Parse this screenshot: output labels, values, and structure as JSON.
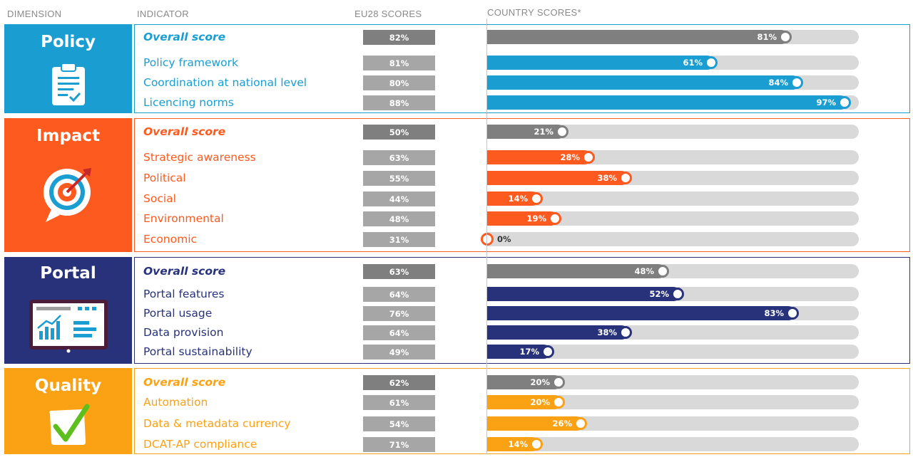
{
  "headers": {
    "dimension": "DIMENSION",
    "indicator": "INDICATOR",
    "eu28": "EU28 SCORES",
    "country": "COUNTRY SCORES*"
  },
  "colors": {
    "policy": "#1a9ed1",
    "impact": "#fc5a1f",
    "portal": "#27327a",
    "quality": "#fba114",
    "overall_bar": "#7f7f7f",
    "eu_box": "#a6a6a6",
    "eu_box_overall": "#7f7f7f",
    "track": "#d9d9d9"
  },
  "chart_data": {
    "type": "bar",
    "orientation": "horizontal",
    "value_unit": "%",
    "xlim": [
      0,
      100
    ],
    "dimensions": [
      {
        "name": "Policy",
        "icon": "clipboard-icon",
        "indicators": [
          {
            "label": "Overall score",
            "eu28": "82%",
            "country": 81,
            "country_label": "81%",
            "overall": true
          },
          {
            "label": "Policy framework",
            "eu28": "81%",
            "country": 61,
            "country_label": "61%"
          },
          {
            "label": "Coordination at national level",
            "eu28": "80%",
            "country": 84,
            "country_label": "84%"
          },
          {
            "label": "Licencing norms",
            "eu28": "88%",
            "country": 97,
            "country_label": "97%"
          }
        ]
      },
      {
        "name": "Impact",
        "icon": "target-icon",
        "indicators": [
          {
            "label": "Overall score",
            "eu28": "50%",
            "country": 21,
            "country_label": "21%",
            "overall": true
          },
          {
            "label": "Strategic awareness",
            "eu28": "63%",
            "country": 28,
            "country_label": "28%"
          },
          {
            "label": "Political",
            "eu28": "55%",
            "country": 38,
            "country_label": "38%"
          },
          {
            "label": "Social",
            "eu28": "44%",
            "country": 14,
            "country_label": "14%"
          },
          {
            "label": "Environmental",
            "eu28": "48%",
            "country": 19,
            "country_label": "19%"
          },
          {
            "label": "Economic",
            "eu28": "31%",
            "country": 0,
            "country_label": "0%"
          }
        ]
      },
      {
        "name": "Portal",
        "icon": "dashboard-icon",
        "indicators": [
          {
            "label": "Overall score",
            "eu28": "63%",
            "country": 48,
            "country_label": "48%",
            "overall": true
          },
          {
            "label": "Portal features",
            "eu28": "64%",
            "country": 52,
            "country_label": "52%"
          },
          {
            "label": "Portal usage",
            "eu28": "76%",
            "country": 83,
            "country_label": "83%"
          },
          {
            "label": "Data provision",
            "eu28": "64%",
            "country": 38,
            "country_label": "38%"
          },
          {
            "label": "Portal sustainability",
            "eu28": "49%",
            "country": 17,
            "country_label": "17%"
          }
        ]
      },
      {
        "name": "Quality",
        "icon": "checkmark-icon",
        "indicators": [
          {
            "label": "Overall score",
            "eu28": "62%",
            "country": 20,
            "country_label": "20%",
            "overall": true
          },
          {
            "label": "Automation",
            "eu28": "61%",
            "country": 20,
            "country_label": "20%"
          },
          {
            "label": "Data & metadata currency",
            "eu28": "54%",
            "country": 26,
            "country_label": "26%"
          },
          {
            "label": "DCAT-AP compliance",
            "eu28": "71%",
            "country": 14,
            "country_label": "14%"
          }
        ]
      }
    ]
  }
}
